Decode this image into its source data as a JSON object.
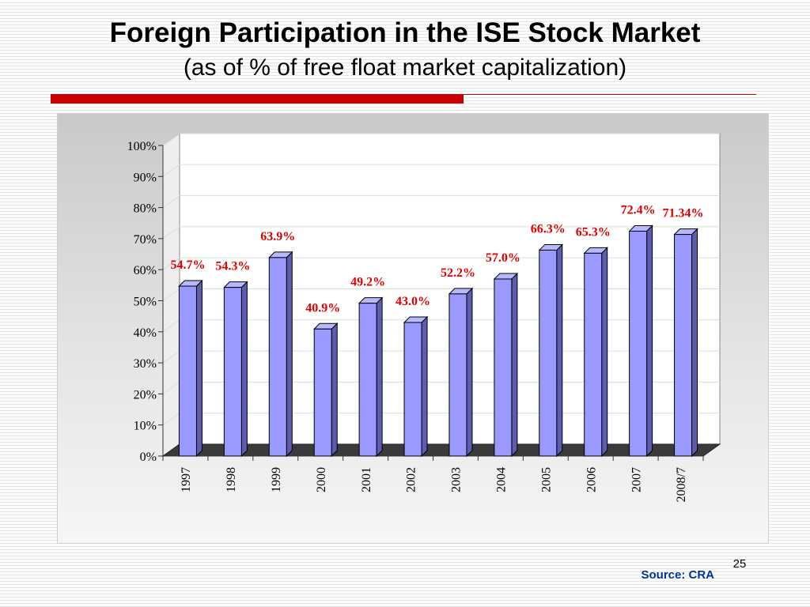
{
  "slide": {
    "title": "Foreign Participation in the ISE Stock Market",
    "subtitle": "(as of % of free float market capitalization)",
    "page_number": "25",
    "source": "Source: CRA"
  },
  "colors": {
    "accent": "#cc0000",
    "bar_front": "#9999ff",
    "bar_side": "#5c5cb0",
    "bar_top": "#b8b8ff",
    "data_label": "#e00000",
    "source_text": "#003399"
  },
  "chart_data": {
    "type": "bar",
    "categories": [
      "1997",
      "1998",
      "1999",
      "2000",
      "2001",
      "2002",
      "2003",
      "2004",
      "2005",
      "2006",
      "2007",
      "2008/7"
    ],
    "values": [
      54.7,
      54.3,
      63.9,
      40.9,
      49.2,
      43.0,
      52.2,
      57.0,
      66.3,
      65.3,
      72.4,
      71.34
    ],
    "data_labels": [
      "54.7%",
      "54.3%",
      "63.9%",
      "40.9%",
      "49.2%",
      "43.0%",
      "52.2%",
      "57.0%",
      "66.3%",
      "65.3%",
      "72.4%",
      "71.34%"
    ],
    "y_ticks": [
      "0%",
      "10%",
      "20%",
      "30%",
      "40%",
      "50%",
      "60%",
      "70%",
      "80%",
      "90%",
      "100%"
    ],
    "ylim": [
      0,
      100
    ],
    "unit": "%",
    "style": "3d-column",
    "grid": true,
    "legend": "none"
  }
}
